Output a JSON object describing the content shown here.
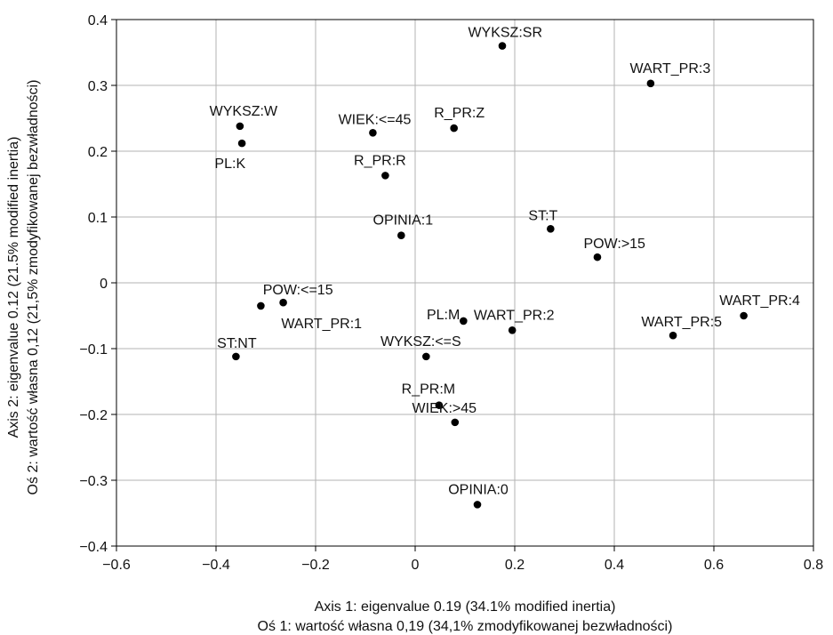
{
  "chart_data": {
    "type": "scatter",
    "title": "",
    "xlabel": [
      "Axis 1: eigenvalue 0.19 (34.1% modified inertia)",
      "Oś 1: wartość własna 0,19 (34,1% zmodyfikowanej bezwładności)"
    ],
    "ylabel": [
      "Axis 2: eigenvalue 0.12 (21.5% modified inertia)",
      "Oś 2: wartość własna 0,12 (21,5% zmodyfikowanej bezwładności)"
    ],
    "xlim": [
      -0.6,
      0.8
    ],
    "ylim": [
      -0.4,
      0.4
    ],
    "xticks": [
      -0.6,
      -0.4,
      -0.2,
      0,
      0.2,
      0.4,
      0.6,
      0.8
    ],
    "yticks": [
      -0.4,
      -0.3,
      -0.2,
      -0.1,
      0,
      0.1,
      0.2,
      0.3,
      0.4
    ],
    "xtick_labels": [
      "−0.6",
      "−0.4",
      "−0.2",
      "0",
      "0.2",
      "0.4",
      "0.6",
      "0.8"
    ],
    "ytick_labels": [
      "−0.4",
      "−0.3",
      "−0.2",
      "−0.1",
      "0",
      "0.1",
      "0.2",
      "0.3",
      "0.4"
    ],
    "grid": true,
    "colors": {
      "point": "#000000",
      "grid": "#b3b3b3",
      "axis": "#000000",
      "text": "#111111"
    },
    "points": [
      {
        "label": "WYKSZ:SR",
        "x": 0.175,
        "y": 0.36,
        "label_pos": "above-left"
      },
      {
        "label": "WART_PR:3",
        "x": 0.473,
        "y": 0.303,
        "label_pos": "above-right"
      },
      {
        "label": "WYKSZ:W",
        "x": -0.352,
        "y": 0.238,
        "label_pos": "above"
      },
      {
        "label": "PL:K",
        "x": -0.348,
        "y": 0.212,
        "label_pos": "below-left"
      },
      {
        "label": "WIEK:<=45",
        "x": -0.085,
        "y": 0.228,
        "label_pos": "above-left"
      },
      {
        "label": "R_PR:Z",
        "x": 0.078,
        "y": 0.235,
        "label_pos": "above"
      },
      {
        "label": "R_PR:R",
        "x": -0.06,
        "y": 0.163,
        "label_pos": "above"
      },
      {
        "label": "OPINIA:1",
        "x": -0.028,
        "y": 0.072,
        "label_pos": "above"
      },
      {
        "label": "ST:T",
        "x": 0.272,
        "y": 0.082,
        "label_pos": "above-left"
      },
      {
        "label": "POW:>15",
        "x": 0.366,
        "y": 0.039,
        "label_pos": "above-left"
      },
      {
        "label": "POW:<=15",
        "x": -0.265,
        "y": -0.03,
        "label_pos": "above-left"
      },
      {
        "label": "WART_PR:1",
        "x": -0.31,
        "y": -0.035,
        "label_pos": "below-right"
      },
      {
        "label": "PL:M",
        "x": 0.097,
        "y": -0.058,
        "label_pos": "left"
      },
      {
        "label": "WART_PR:2",
        "x": 0.195,
        "y": -0.072,
        "label_pos": "above"
      },
      {
        "label": "WART_PR:4",
        "x": 0.66,
        "y": -0.05,
        "label_pos": "above"
      },
      {
        "label": "WART_PR:5",
        "x": 0.518,
        "y": -0.08,
        "label_pos": "above-left"
      },
      {
        "label": "ST:NT",
        "x": -0.36,
        "y": -0.112,
        "label_pos": "above"
      },
      {
        "label": "WYKSZ:<=S",
        "x": 0.022,
        "y": -0.112,
        "label_pos": "above"
      },
      {
        "label": "R_PR:M",
        "x": 0.048,
        "y": -0.186,
        "label_pos": "above"
      },
      {
        "label": "WIEK:>45",
        "x": 0.08,
        "y": -0.212,
        "label_pos": "above"
      },
      {
        "label": "OPINIA:0",
        "x": 0.125,
        "y": -0.337,
        "label_pos": "above"
      }
    ]
  }
}
